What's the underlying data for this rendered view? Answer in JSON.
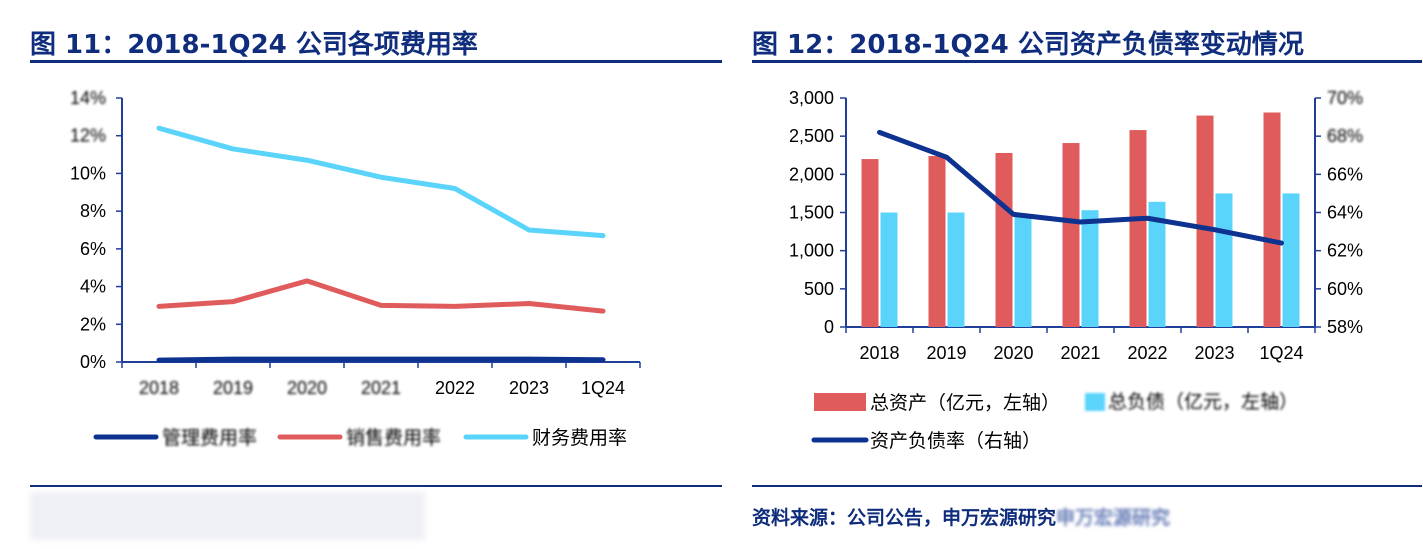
{
  "figure_left": {
    "title": "图 11：2018-1Q24 公司各项费用率",
    "y_ticks": [
      "0%",
      "2%",
      "4%",
      "6%",
      "8%",
      "10%",
      "12%",
      "14%"
    ],
    "x_ticks": [
      "2018",
      "2019",
      "2020",
      "2021",
      "2022",
      "2023",
      "1Q24"
    ],
    "legend": [
      "管理费用率",
      "销售费用率",
      "财务费用率"
    ]
  },
  "figure_right": {
    "title": "图 12：2018-1Q24 公司资产负债率变动情况",
    "y_left_ticks": [
      "0",
      "500",
      "1,000",
      "1,500",
      "2,000",
      "2,500",
      "3,000"
    ],
    "y_right_ticks": [
      "58%",
      "60%",
      "62%",
      "64%",
      "66%",
      "68%",
      "70%"
    ],
    "x_ticks": [
      "2018",
      "2019",
      "2020",
      "2021",
      "2022",
      "2023",
      "1Q24"
    ],
    "legend": [
      "总资产（亿元，左轴）",
      "总负债（亿元，左轴）",
      "资产负债率（右轴）"
    ]
  },
  "source": {
    "label": "资料来源：公司公告，申万宏源研究",
    "blurred_tail": "申万宏源研究"
  },
  "colors": {
    "title": "#0f2d7c",
    "navy": "#0e3290",
    "red": "#e05b5b",
    "cyan": "#5ad4fa"
  },
  "chart_data": [
    {
      "type": "line",
      "title": "图 11：2018-1Q24 公司各项费用率",
      "categories": [
        "2018",
        "2019",
        "2020",
        "2021",
        "2022",
        "2023",
        "1Q24"
      ],
      "ylim": [
        0,
        14
      ],
      "yunit": "%",
      "grid": false,
      "legend_position": "bottom",
      "series": [
        {
          "name": "管理费用率",
          "color": "#0e3290",
          "values": [
            0.1,
            0.15,
            0.15,
            0.15,
            0.15,
            0.15,
            0.12
          ]
        },
        {
          "name": "销售费用率",
          "color": "#e05b5b",
          "values": [
            2.95,
            3.2,
            4.3,
            3.0,
            2.95,
            3.1,
            2.7
          ]
        },
        {
          "name": "财务费用率",
          "color": "#5ad4fa",
          "values": [
            12.4,
            11.3,
            10.7,
            9.8,
            9.2,
            7.0,
            6.7
          ]
        }
      ]
    },
    {
      "type": "bar",
      "title": "图 12：2018-1Q24 公司资产负债率变动情况",
      "categories": [
        "2018",
        "2019",
        "2020",
        "2021",
        "2022",
        "2023",
        "1Q24"
      ],
      "ylim": [
        0,
        3000
      ],
      "y2lim": [
        58,
        70
      ],
      "grid": false,
      "legend_position": "bottom",
      "series": [
        {
          "name": "总资产（亿元，左轴）",
          "type": "bar",
          "axis": "left",
          "color": "#e05b5b",
          "values": [
            2200,
            2240,
            2280,
            2410,
            2580,
            2770,
            2810
          ]
        },
        {
          "name": "总负债（亿元，左轴）",
          "type": "bar",
          "axis": "left",
          "color": "#5ad4fa",
          "values": [
            1500,
            1500,
            1470,
            1530,
            1640,
            1750,
            1750
          ]
        },
        {
          "name": "资产负债率（右轴）",
          "type": "line",
          "axis": "right",
          "color": "#0e3290",
          "values": [
            68.2,
            66.9,
            63.9,
            63.5,
            63.7,
            63.1,
            62.4
          ]
        }
      ]
    }
  ]
}
